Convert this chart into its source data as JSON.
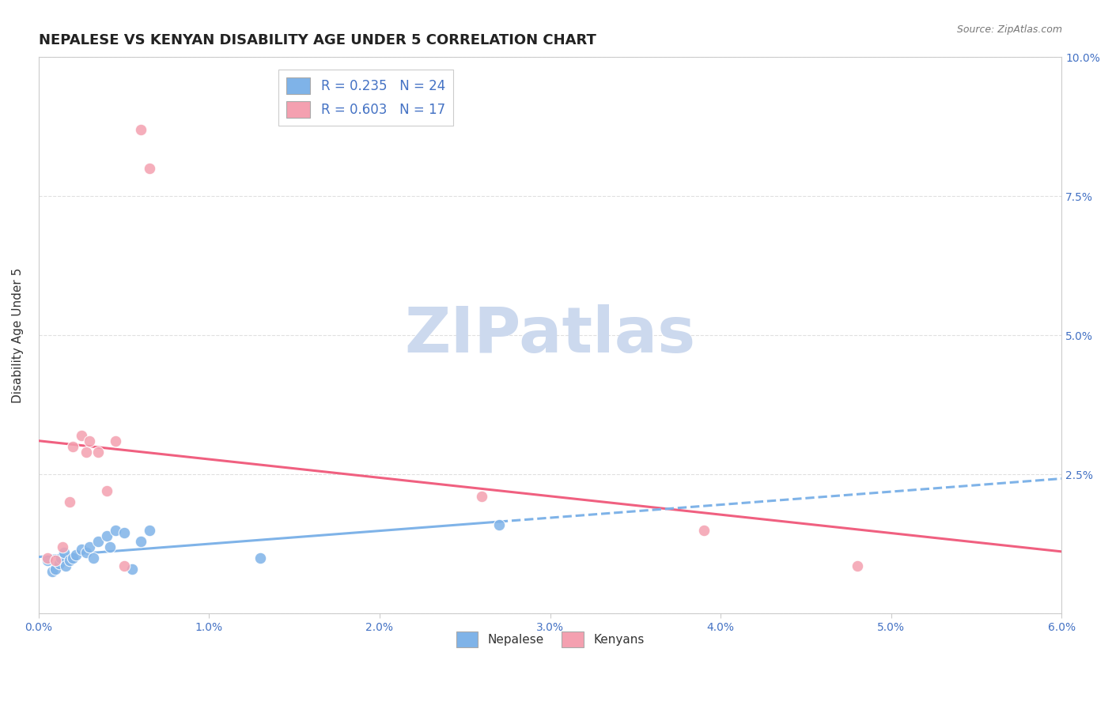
{
  "title": "NEPALESE VS KENYAN DISABILITY AGE UNDER 5 CORRELATION CHART",
  "source_text": "Source: ZipAtlas.com",
  "ylabel": "Disability Age Under 5",
  "xlim": [
    0.0,
    0.06
  ],
  "ylim": [
    0.0,
    0.1
  ],
  "xticks": [
    0.0,
    0.01,
    0.02,
    0.03,
    0.04,
    0.05,
    0.06
  ],
  "xticklabels": [
    "0.0%",
    "1.0%",
    "2.0%",
    "3.0%",
    "4.0%",
    "5.0%",
    "6.0%"
  ],
  "yticks": [
    0.0,
    0.025,
    0.05,
    0.075,
    0.1
  ],
  "yticklabels": [
    "",
    "2.5%",
    "5.0%",
    "7.5%",
    "10.0%"
  ],
  "nepalese_x": [
    0.0005,
    0.0008,
    0.001,
    0.0012,
    0.0013,
    0.0015,
    0.0016,
    0.0018,
    0.002,
    0.0022,
    0.0025,
    0.0028,
    0.003,
    0.0032,
    0.0035,
    0.004,
    0.0042,
    0.0045,
    0.005,
    0.0055,
    0.006,
    0.0065,
    0.013,
    0.027
  ],
  "nepalese_y": [
    0.0095,
    0.0075,
    0.008,
    0.009,
    0.01,
    0.011,
    0.0085,
    0.0095,
    0.01,
    0.0105,
    0.0115,
    0.011,
    0.012,
    0.01,
    0.013,
    0.014,
    0.012,
    0.015,
    0.0145,
    0.008,
    0.013,
    0.015,
    0.01,
    0.016
  ],
  "kenyan_x": [
    0.0005,
    0.001,
    0.0014,
    0.0018,
    0.002,
    0.0025,
    0.0028,
    0.003,
    0.0035,
    0.004,
    0.0045,
    0.005,
    0.006,
    0.0065,
    0.026,
    0.039,
    0.048
  ],
  "kenyan_y": [
    0.01,
    0.0095,
    0.012,
    0.02,
    0.03,
    0.032,
    0.029,
    0.031,
    0.029,
    0.022,
    0.031,
    0.0085,
    0.087,
    0.08,
    0.021,
    0.015,
    0.0085
  ],
  "nepalese_color": "#7fb3e8",
  "kenyan_color": "#f4a0b0",
  "nepalese_line_color": "#7fb3e8",
  "kenyan_line_color": "#f06080",
  "nepalese_R": 0.235,
  "nepalese_N": 24,
  "kenyan_R": 0.603,
  "kenyan_N": 17,
  "legend_label_nepalese": "Nepalese",
  "legend_label_kenyan": "Kenyans",
  "watermark": "ZIPatlas",
  "watermark_color": "#ccd9ee",
  "title_fontsize": 13,
  "axis_label_fontsize": 11,
  "tick_fontsize": 10,
  "tick_color": "#4472c4",
  "background_color": "#ffffff",
  "grid_color": "#e0e0e0",
  "source_fontsize": 9,
  "source_color": "#777777"
}
